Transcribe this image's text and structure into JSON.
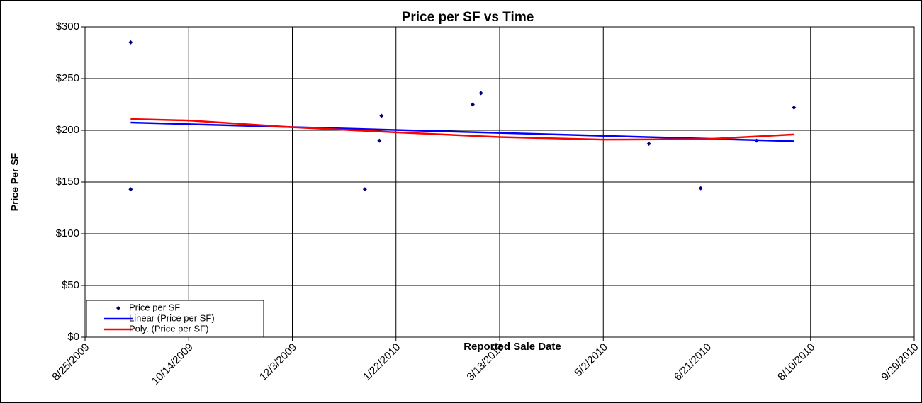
{
  "chart_data": {
    "type": "scatter",
    "title": "Price per SF vs Time",
    "x_label": "Reported Sale Date",
    "y_label": "Price Per SF",
    "xlim": [
      "2009-08-25",
      "2010-09-29"
    ],
    "xticks": [
      {
        "value": "2009-08-25",
        "label": "8/25/2009"
      },
      {
        "value": "2009-10-14",
        "label": "10/14/2009"
      },
      {
        "value": "2009-12-03",
        "label": "12/3/2009"
      },
      {
        "value": "2010-01-22",
        "label": "1/22/2010"
      },
      {
        "value": "2010-03-13",
        "label": "3/13/2010"
      },
      {
        "value": "2010-05-02",
        "label": "5/2/2010"
      },
      {
        "value": "2010-06-21",
        "label": "6/21/2010"
      },
      {
        "value": "2010-08-10",
        "label": "8/10/2010"
      },
      {
        "value": "2010-09-29",
        "label": "9/29/2010"
      }
    ],
    "ylim": [
      0,
      300
    ],
    "yticks": [
      {
        "value": 0,
        "label": "$0"
      },
      {
        "value": 50,
        "label": "$50"
      },
      {
        "value": 100,
        "label": "$100"
      },
      {
        "value": 150,
        "label": "$150"
      },
      {
        "value": 200,
        "label": "$200"
      },
      {
        "value": 250,
        "label": "$250"
      },
      {
        "value": 300,
        "label": "$300"
      }
    ],
    "grid": true,
    "legend": "lower left",
    "series": [
      {
        "name": "Price per SF",
        "type": "scatter",
        "color": "#000080",
        "x": [
          "2009-09-16",
          "2009-09-16",
          "2010-01-07",
          "2010-01-14",
          "2010-01-15",
          "2010-02-28",
          "2010-03-04",
          "2010-05-24",
          "2010-06-18",
          "2010-07-15",
          "2010-08-02"
        ],
        "values": [
          285,
          143,
          143,
          190,
          214,
          225,
          236,
          187,
          144,
          190,
          222
        ]
      },
      {
        "name": "Linear (Price per SF)",
        "type": "line",
        "color": "#0000ff",
        "x": [
          "2009-09-16",
          "2010-08-02"
        ],
        "values": [
          207.5,
          189.5
        ]
      },
      {
        "name": "Poly. (Price per SF)",
        "type": "line",
        "color": "#ff0000",
        "x": [
          "2009-09-16",
          "2009-10-14",
          "2009-12-03",
          "2010-01-22",
          "2010-03-13",
          "2010-05-02",
          "2010-06-21",
          "2010-08-02"
        ],
        "values": [
          211,
          209.5,
          203,
          198,
          193.5,
          191,
          191.5,
          196
        ]
      }
    ]
  }
}
